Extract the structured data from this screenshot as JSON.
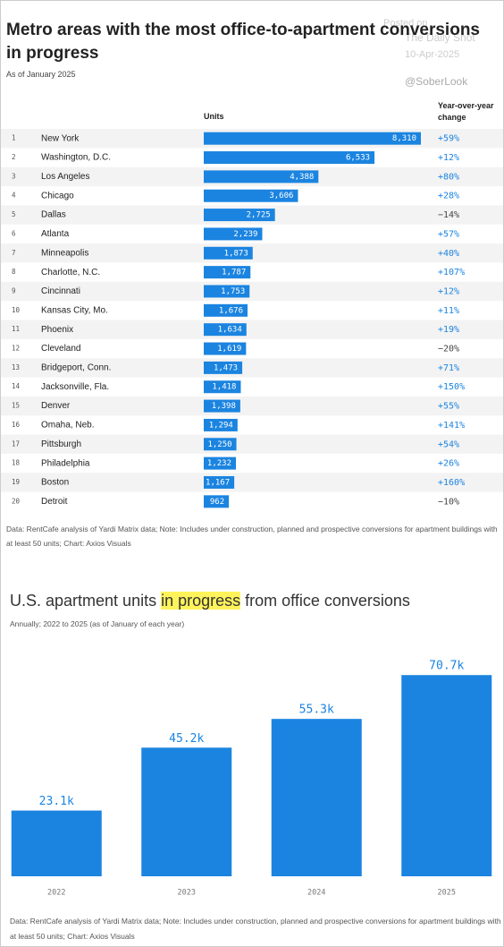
{
  "watermark": {
    "line1": "Posted on",
    "line2": "The Daily Shot",
    "date": "10-Apr-2025",
    "handle": "@SoberLook"
  },
  "chart_data": [
    {
      "type": "bar",
      "orientation": "horizontal",
      "title": "Metro areas with the most office-to-apartment conversions in progress",
      "subtitle": "As of January 2025",
      "value_header": "Units",
      "change_header": "Year-over-year change",
      "ranks": [
        1,
        2,
        3,
        4,
        5,
        6,
        7,
        8,
        9,
        10,
        11,
        12,
        13,
        14,
        15,
        16,
        17,
        18,
        19,
        20
      ],
      "categories": [
        "New York",
        "Washington, D.C.",
        "Los Angeles",
        "Chicago",
        "Dallas",
        "Atlanta",
        "Minneapolis",
        "Charlotte, N.C.",
        "Cincinnati",
        "Kansas City, Mo.",
        "Phoenix",
        "Cleveland",
        "Bridgeport, Conn.",
        "Jacksonville, Fla.",
        "Denver",
        "Omaha, Neb.",
        "Pittsburgh",
        "Philadelphia",
        "Boston",
        "Detroit"
      ],
      "values": [
        8310,
        6533,
        4388,
        3606,
        2725,
        2239,
        1873,
        1787,
        1753,
        1676,
        1634,
        1619,
        1473,
        1418,
        1398,
        1294,
        1250,
        1232,
        1167,
        962
      ],
      "value_labels": [
        "8,310",
        "6,533",
        "4,388",
        "3,606",
        "2,725",
        "2,239",
        "1,873",
        "1,787",
        "1,753",
        "1,676",
        "1,634",
        "1,619",
        "1,473",
        "1,418",
        "1,398",
        "1,294",
        "1,250",
        "1,232",
        "1,167",
        "962"
      ],
      "yoy_change": [
        "+59%",
        "+12%",
        "+80%",
        "+28%",
        "−14%",
        "+57%",
        "+40%",
        "+107%",
        "+12%",
        "+11%",
        "+19%",
        "−20%",
        "+71%",
        "+150%",
        "+55%",
        "+141%",
        "+54%",
        "+26%",
        "+160%",
        "−10%"
      ],
      "color": "#1b84e0",
      "xlim": [
        0,
        8310
      ],
      "note": "Data: RentCafe analysis of Yardi Matrix data; Note: Includes under construction, planned and prospective conversions for apartment buildings with at least 50 units; Chart: Axios Visuals"
    },
    {
      "type": "bar",
      "orientation": "vertical",
      "title_parts": [
        "U.S. apartment units ",
        "in progress",
        " from office conversions"
      ],
      "highlight": 1,
      "subtitle": "Annually; 2022 to 2025 (as of January of each year)",
      "categories": [
        "2022",
        "2023",
        "2024",
        "2025"
      ],
      "values": [
        23100,
        45200,
        55300,
        70700
      ],
      "value_labels": [
        "23.1k",
        "45.2k",
        "55.3k",
        "70.7k"
      ],
      "color": "#1b84e0",
      "ylim": [
        0,
        78000
      ],
      "note": "Data: RentCafe analysis of Yardi Matrix data; Note: Includes under construction, planned and prospective conversions for apartment buildings with at least 50 units; Chart: Axios Visuals"
    }
  ]
}
